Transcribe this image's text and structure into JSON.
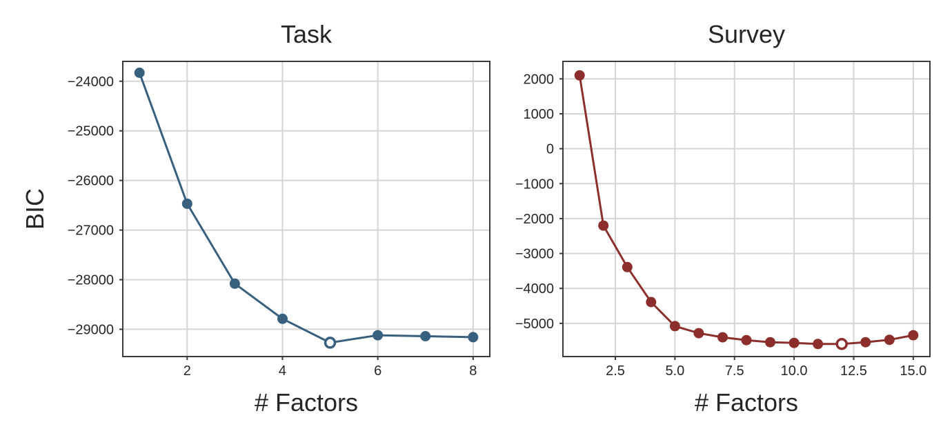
{
  "figure": {
    "ylabel": "BIC"
  },
  "chart_data": [
    {
      "type": "line",
      "title": "Task",
      "xlabel": "# Factors",
      "ylabel": "BIC",
      "color": "#37607e",
      "grid": true,
      "xlim": [
        0.65,
        8.35
      ],
      "ylim": [
        -29550,
        -23600
      ],
      "xticks": [
        2,
        4,
        6,
        8
      ],
      "xtick_labels": [
        "2",
        "4",
        "6",
        "8"
      ],
      "yticks": [
        -29000,
        -28000,
        -27000,
        -26000,
        -25000,
        -24000
      ],
      "ytick_labels": [
        "−29000",
        "−28000",
        "−27000",
        "−26000",
        "−25000",
        "−24000"
      ],
      "x": [
        1,
        2,
        3,
        4,
        5,
        6,
        7,
        8
      ],
      "values": [
        -23830,
        -26470,
        -28080,
        -28790,
        -29270,
        -29120,
        -29140,
        -29160
      ],
      "highlight_x": 5
    },
    {
      "type": "line",
      "title": "Survey",
      "xlabel": "# Factors",
      "ylabel": "",
      "color": "#8c2f2c",
      "grid": true,
      "xlim": [
        0.3,
        15.7
      ],
      "ylim": [
        -5950,
        2500
      ],
      "xticks": [
        2.5,
        5.0,
        7.5,
        10.0,
        12.5,
        15.0
      ],
      "xtick_labels": [
        "2.5",
        "5.0",
        "7.5",
        "10.0",
        "12.5",
        "15.0"
      ],
      "yticks": [
        -5000,
        -4000,
        -3000,
        -2000,
        -1000,
        0,
        1000,
        2000
      ],
      "ytick_labels": [
        "−5000",
        "−4000",
        "−3000",
        "−2000",
        "−1000",
        "0",
        "1000",
        "2000"
      ],
      "x": [
        1,
        2,
        3,
        4,
        5,
        6,
        7,
        8,
        9,
        10,
        11,
        12,
        13,
        14,
        15
      ],
      "values": [
        2100,
        -2200,
        -3390,
        -4390,
        -5080,
        -5280,
        -5400,
        -5480,
        -5540,
        -5560,
        -5590,
        -5590,
        -5540,
        -5470,
        -5340
      ],
      "highlight_x": 12
    }
  ]
}
